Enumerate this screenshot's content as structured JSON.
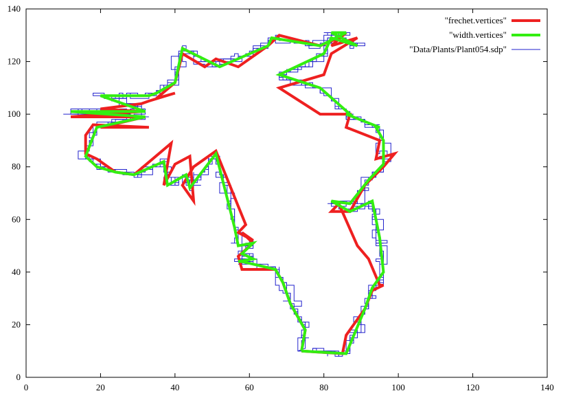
{
  "chart_data": {
    "type": "line",
    "title": "",
    "xlabel": "",
    "ylabel": "",
    "xlim": [
      0,
      140
    ],
    "ylim": [
      0,
      140
    ],
    "xticks": [
      0,
      20,
      40,
      60,
      80,
      100,
      120,
      140
    ],
    "yticks": [
      0,
      20,
      40,
      60,
      80,
      100,
      120,
      140
    ],
    "grid": false,
    "legend_position": "top-right",
    "series": [
      {
        "name": "\"frechet.vertices\"",
        "color": "#ee2020",
        "style": "thick-line",
        "x": [
          74,
          85,
          86,
          91,
          93,
          96,
          95,
          92,
          89,
          84,
          82,
          87,
          91,
          96,
          99,
          94,
          95,
          86,
          87,
          79,
          68,
          80,
          82,
          89,
          82,
          86,
          84,
          79,
          68,
          65,
          57,
          51,
          48,
          42,
          40,
          35,
          40,
          33,
          31,
          20,
          31,
          12,
          32,
          20,
          33,
          18,
          16,
          16,
          19,
          23,
          24,
          29,
          39,
          37,
          40,
          44,
          45,
          42,
          45,
          51,
          57,
          59,
          57,
          61,
          58,
          61,
          57,
          58,
          67,
          69,
          71,
          75,
          74
        ],
        "y": [
          10,
          9,
          16,
          26,
          33,
          35,
          35,
          45,
          50,
          66,
          63,
          63,
          73,
          80,
          85,
          83,
          90,
          95,
          100,
          100,
          110,
          115,
          123,
          129,
          126,
          131,
          129,
          126,
          130,
          126,
          118,
          121,
          118,
          123,
          112,
          106,
          108,
          105,
          104,
          102,
          101,
          99,
          99,
          95,
          95,
          96,
          92,
          85,
          83,
          79,
          78,
          77,
          89,
          73,
          81,
          84,
          67,
          73,
          80,
          86,
          65,
          58,
          55,
          52,
          55,
          51,
          46,
          41,
          41,
          36,
          28,
          18,
          10
        ]
      },
      {
        "name": "\"width.vertices\"",
        "color": "#33ee11",
        "style": "thick-line",
        "x": [
          74,
          86,
          91,
          93,
          96,
          95,
          93,
          87,
          82,
          87,
          92,
          96,
          96,
          94,
          95,
          86,
          87,
          79,
          68,
          80,
          82,
          89,
          82,
          86,
          79,
          66,
          65,
          52,
          42,
          40,
          35,
          33,
          20,
          32,
          12,
          32,
          19,
          16,
          19,
          24,
          29,
          37,
          38,
          43,
          44,
          51,
          56,
          57,
          61,
          58,
          61,
          57,
          58,
          67,
          69,
          71,
          75,
          74
        ],
        "y": [
          10,
          9,
          26,
          34,
          40,
          53,
          67,
          63,
          67,
          66,
          75,
          81,
          90,
          95,
          95,
          100,
          100,
          110,
          115,
          123,
          129,
          126,
          131,
          131,
          126,
          129,
          126,
          118,
          125,
          112,
          108,
          107,
          107,
          101,
          101,
          99,
          95,
          84,
          80,
          78,
          77,
          82,
          73,
          77,
          72,
          85,
          57,
          50,
          51,
          47,
          45,
          44,
          44,
          41,
          36,
          28,
          18,
          10
        ]
      }
    ],
    "outline_series": {
      "name": "\"Data/Plants/Plant054.sdp\"",
      "color": "#2222cc",
      "style": "thin-line"
    }
  }
}
